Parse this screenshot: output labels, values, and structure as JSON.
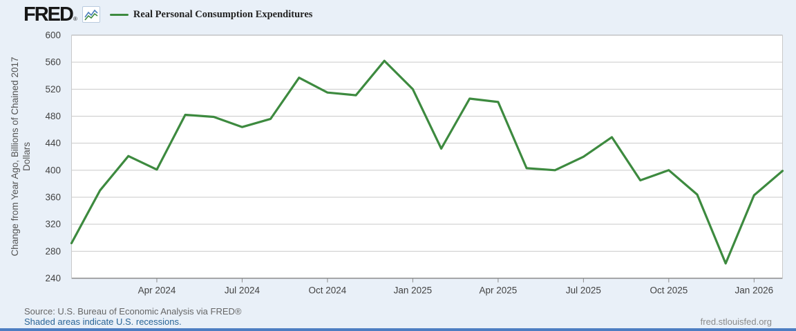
{
  "header": {
    "logo_text": "FRED",
    "logo_mark": "®",
    "legend": {
      "series_label": "Real Personal Consumption Expenditures"
    }
  },
  "chart_data": {
    "type": "line",
    "title": "Real Personal Consumption Expenditures",
    "ylabel": "Change from Year Ago, Billions of Chained 2017 Dollars",
    "ylabel_lines": [
      "Change from Year Ago, Billions of Chained 2017",
      "Dollars"
    ],
    "x": [
      "Jan 2024",
      "Feb 2024",
      "Mar 2024",
      "Apr 2024",
      "May 2024",
      "Jun 2024",
      "Jul 2024",
      "Aug 2024",
      "Sep 2024",
      "Oct 2024",
      "Nov 2024",
      "Dec 2024",
      "Jan 2025",
      "Feb 2025",
      "Mar 2025",
      "Apr 2025",
      "May 2025",
      "Jun 2025",
      "Jul 2025",
      "Aug 2025",
      "Sep 2025",
      "Oct 2025",
      "Nov 2025",
      "Dec 2025",
      "Jan 2026",
      "Feb 2026"
    ],
    "values": [
      292,
      370,
      421,
      401,
      482,
      479,
      464,
      476,
      537,
      515,
      511,
      562,
      520,
      432,
      506,
      501,
      403,
      400,
      420,
      449,
      385,
      400,
      364,
      262,
      363,
      399
    ],
    "ylim": [
      240,
      600
    ],
    "yticks": [
      600,
      560,
      520,
      480,
      440,
      400,
      360,
      320,
      280,
      240
    ],
    "xticks": [
      {
        "label": "Apr 2024",
        "index": 3
      },
      {
        "label": "Jul 2024",
        "index": 6
      },
      {
        "label": "Oct 2024",
        "index": 9
      },
      {
        "label": "Jan 2025",
        "index": 12
      },
      {
        "label": "Apr 2025",
        "index": 15
      },
      {
        "label": "Jul 2025",
        "index": 18
      },
      {
        "label": "Oct 2025",
        "index": 21
      },
      {
        "label": "Jan 2026",
        "index": 24
      }
    ],
    "grid": true,
    "legend_position": "top-left",
    "colors": {
      "line": "#3d8a3f",
      "plot_bg": "#ffffff",
      "outer_bg": "#e9f0f8",
      "grid": "#c9c9c9",
      "frame": "#aaaaaa",
      "axis": "#8a8a8a",
      "tick_text": "#424242",
      "accent_bar": "#4d7ec2",
      "link": "#2a6496"
    }
  },
  "footer": {
    "source_text": "Source: U.S. Bureau of Economic Analysis via FRED®",
    "recession_note": "Shaded areas indicate U.S. recessions.",
    "site_link": "fred.stlouisfed.org"
  }
}
